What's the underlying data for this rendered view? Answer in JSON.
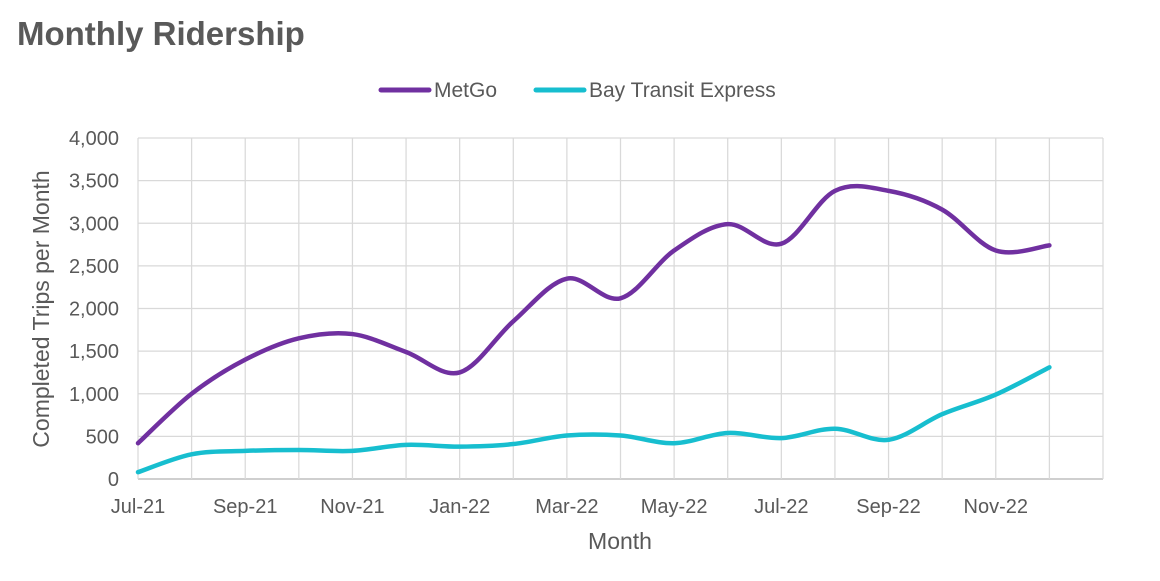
{
  "chart_data": {
    "type": "line",
    "title": "Monthly Ridership",
    "xlabel": "Month",
    "ylabel": "Completed Trips per Month",
    "ylim": [
      0,
      4000
    ],
    "y_ticks": [
      "0",
      "500",
      "1,000",
      "1,500",
      "2,000",
      "2,500",
      "3,000",
      "3,500",
      "4,000"
    ],
    "y_tick_values": [
      0,
      500,
      1000,
      1500,
      2000,
      2500,
      3000,
      3500,
      4000
    ],
    "categories": [
      "Jul-21",
      "Aug-21",
      "Sep-21",
      "Oct-21",
      "Nov-21",
      "Dec-21",
      "Jan-22",
      "Feb-22",
      "Mar-22",
      "Apr-22",
      "May-22",
      "Jun-22",
      "Jul-22",
      "Aug-22",
      "Sep-22",
      "Oct-22",
      "Nov-22",
      "Dec-22"
    ],
    "x_tick_labels": [
      "Jul-21",
      "",
      "Sep-21",
      "",
      "Nov-21",
      "",
      "Jan-22",
      "",
      "Mar-22",
      "",
      "May-22",
      "",
      "Jul-22",
      "",
      "Sep-22",
      "",
      "Nov-22",
      ""
    ],
    "grid": true,
    "legend_position": "top",
    "series": [
      {
        "name": "MetGo",
        "color": "#7030A0",
        "values": [
          420,
          1000,
          1400,
          1650,
          1700,
          1490,
          1250,
          1850,
          2350,
          2120,
          2680,
          2990,
          2760,
          3380,
          3380,
          3160,
          2680,
          2740
        ]
      },
      {
        "name": "Bay Transit Express",
        "color": "#17BECF",
        "values": [
          80,
          290,
          330,
          340,
          330,
          400,
          380,
          410,
          510,
          510,
          420,
          540,
          480,
          590,
          460,
          760,
          990,
          1310
        ]
      }
    ]
  }
}
